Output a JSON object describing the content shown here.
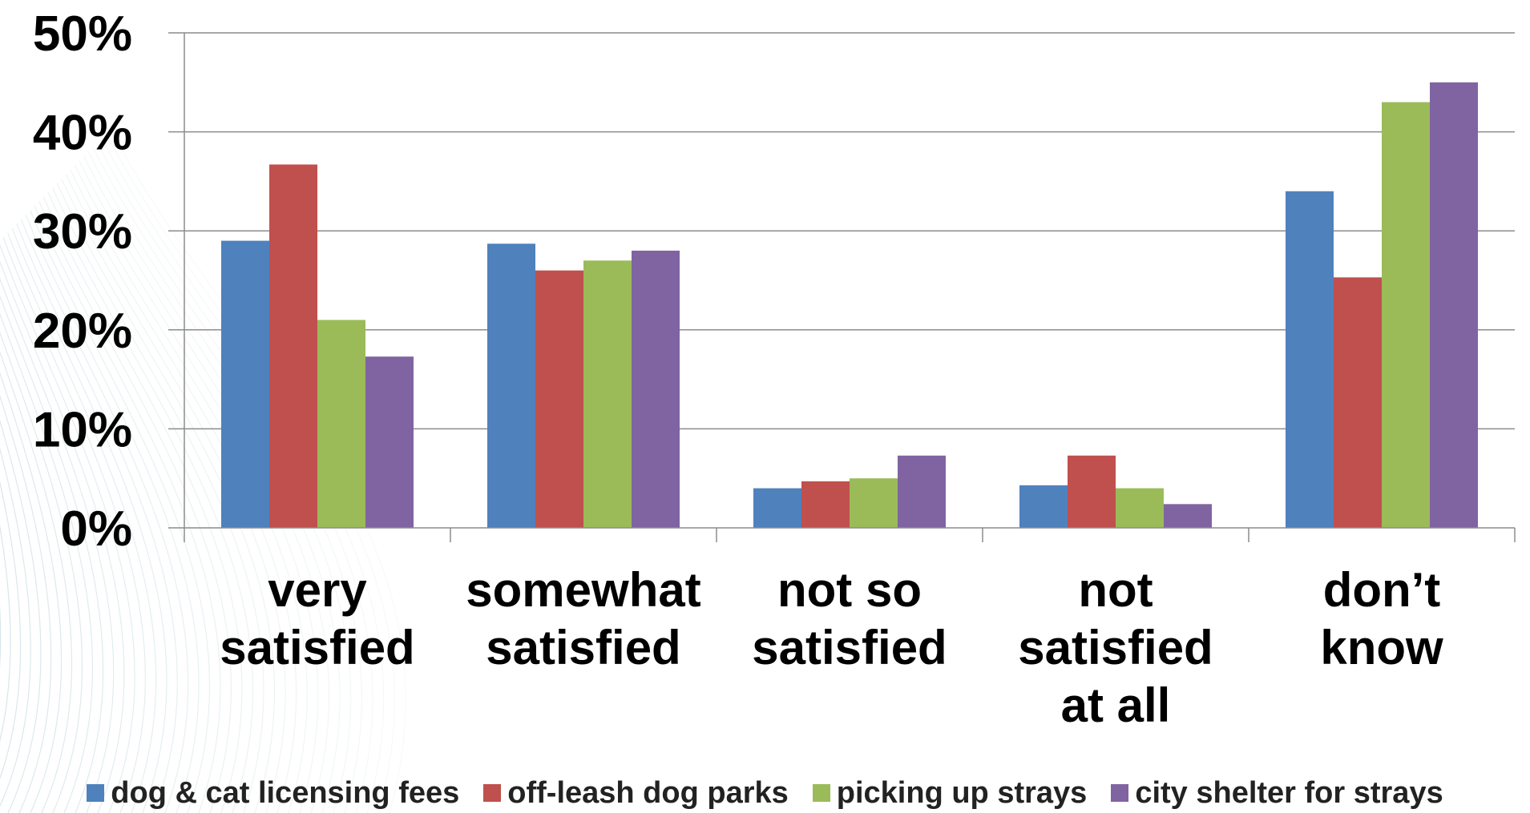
{
  "chart_data": {
    "type": "bar",
    "categories": [
      [
        "very",
        "satisfied"
      ],
      [
        "somewhat",
        "satisfied"
      ],
      [
        "not so",
        "satisfied"
      ],
      [
        "not",
        "satisfied",
        "at all"
      ],
      [
        "don’t",
        "know"
      ]
    ],
    "series": [
      {
        "name": "dog & cat licensing fees",
        "color": "#4f81bd",
        "values": [
          29,
          28.7,
          4,
          4.3,
          34
        ]
      },
      {
        "name": "off-leash dog parks",
        "color": "#c0504d",
        "values": [
          36.7,
          26,
          4.7,
          7.3,
          25.3
        ]
      },
      {
        "name": "picking up strays",
        "color": "#9bbb59",
        "values": [
          21,
          27,
          5,
          4,
          43
        ]
      },
      {
        "name": "city shelter for strays",
        "color": "#8064a2",
        "values": [
          17.3,
          28,
          7.3,
          2.4,
          45
        ]
      }
    ],
    "ylim": [
      0,
      50
    ],
    "yticks": [
      "0%",
      "10%",
      "20%",
      "30%",
      "40%",
      "50%"
    ],
    "grid": true,
    "legend_position": "bottom"
  }
}
